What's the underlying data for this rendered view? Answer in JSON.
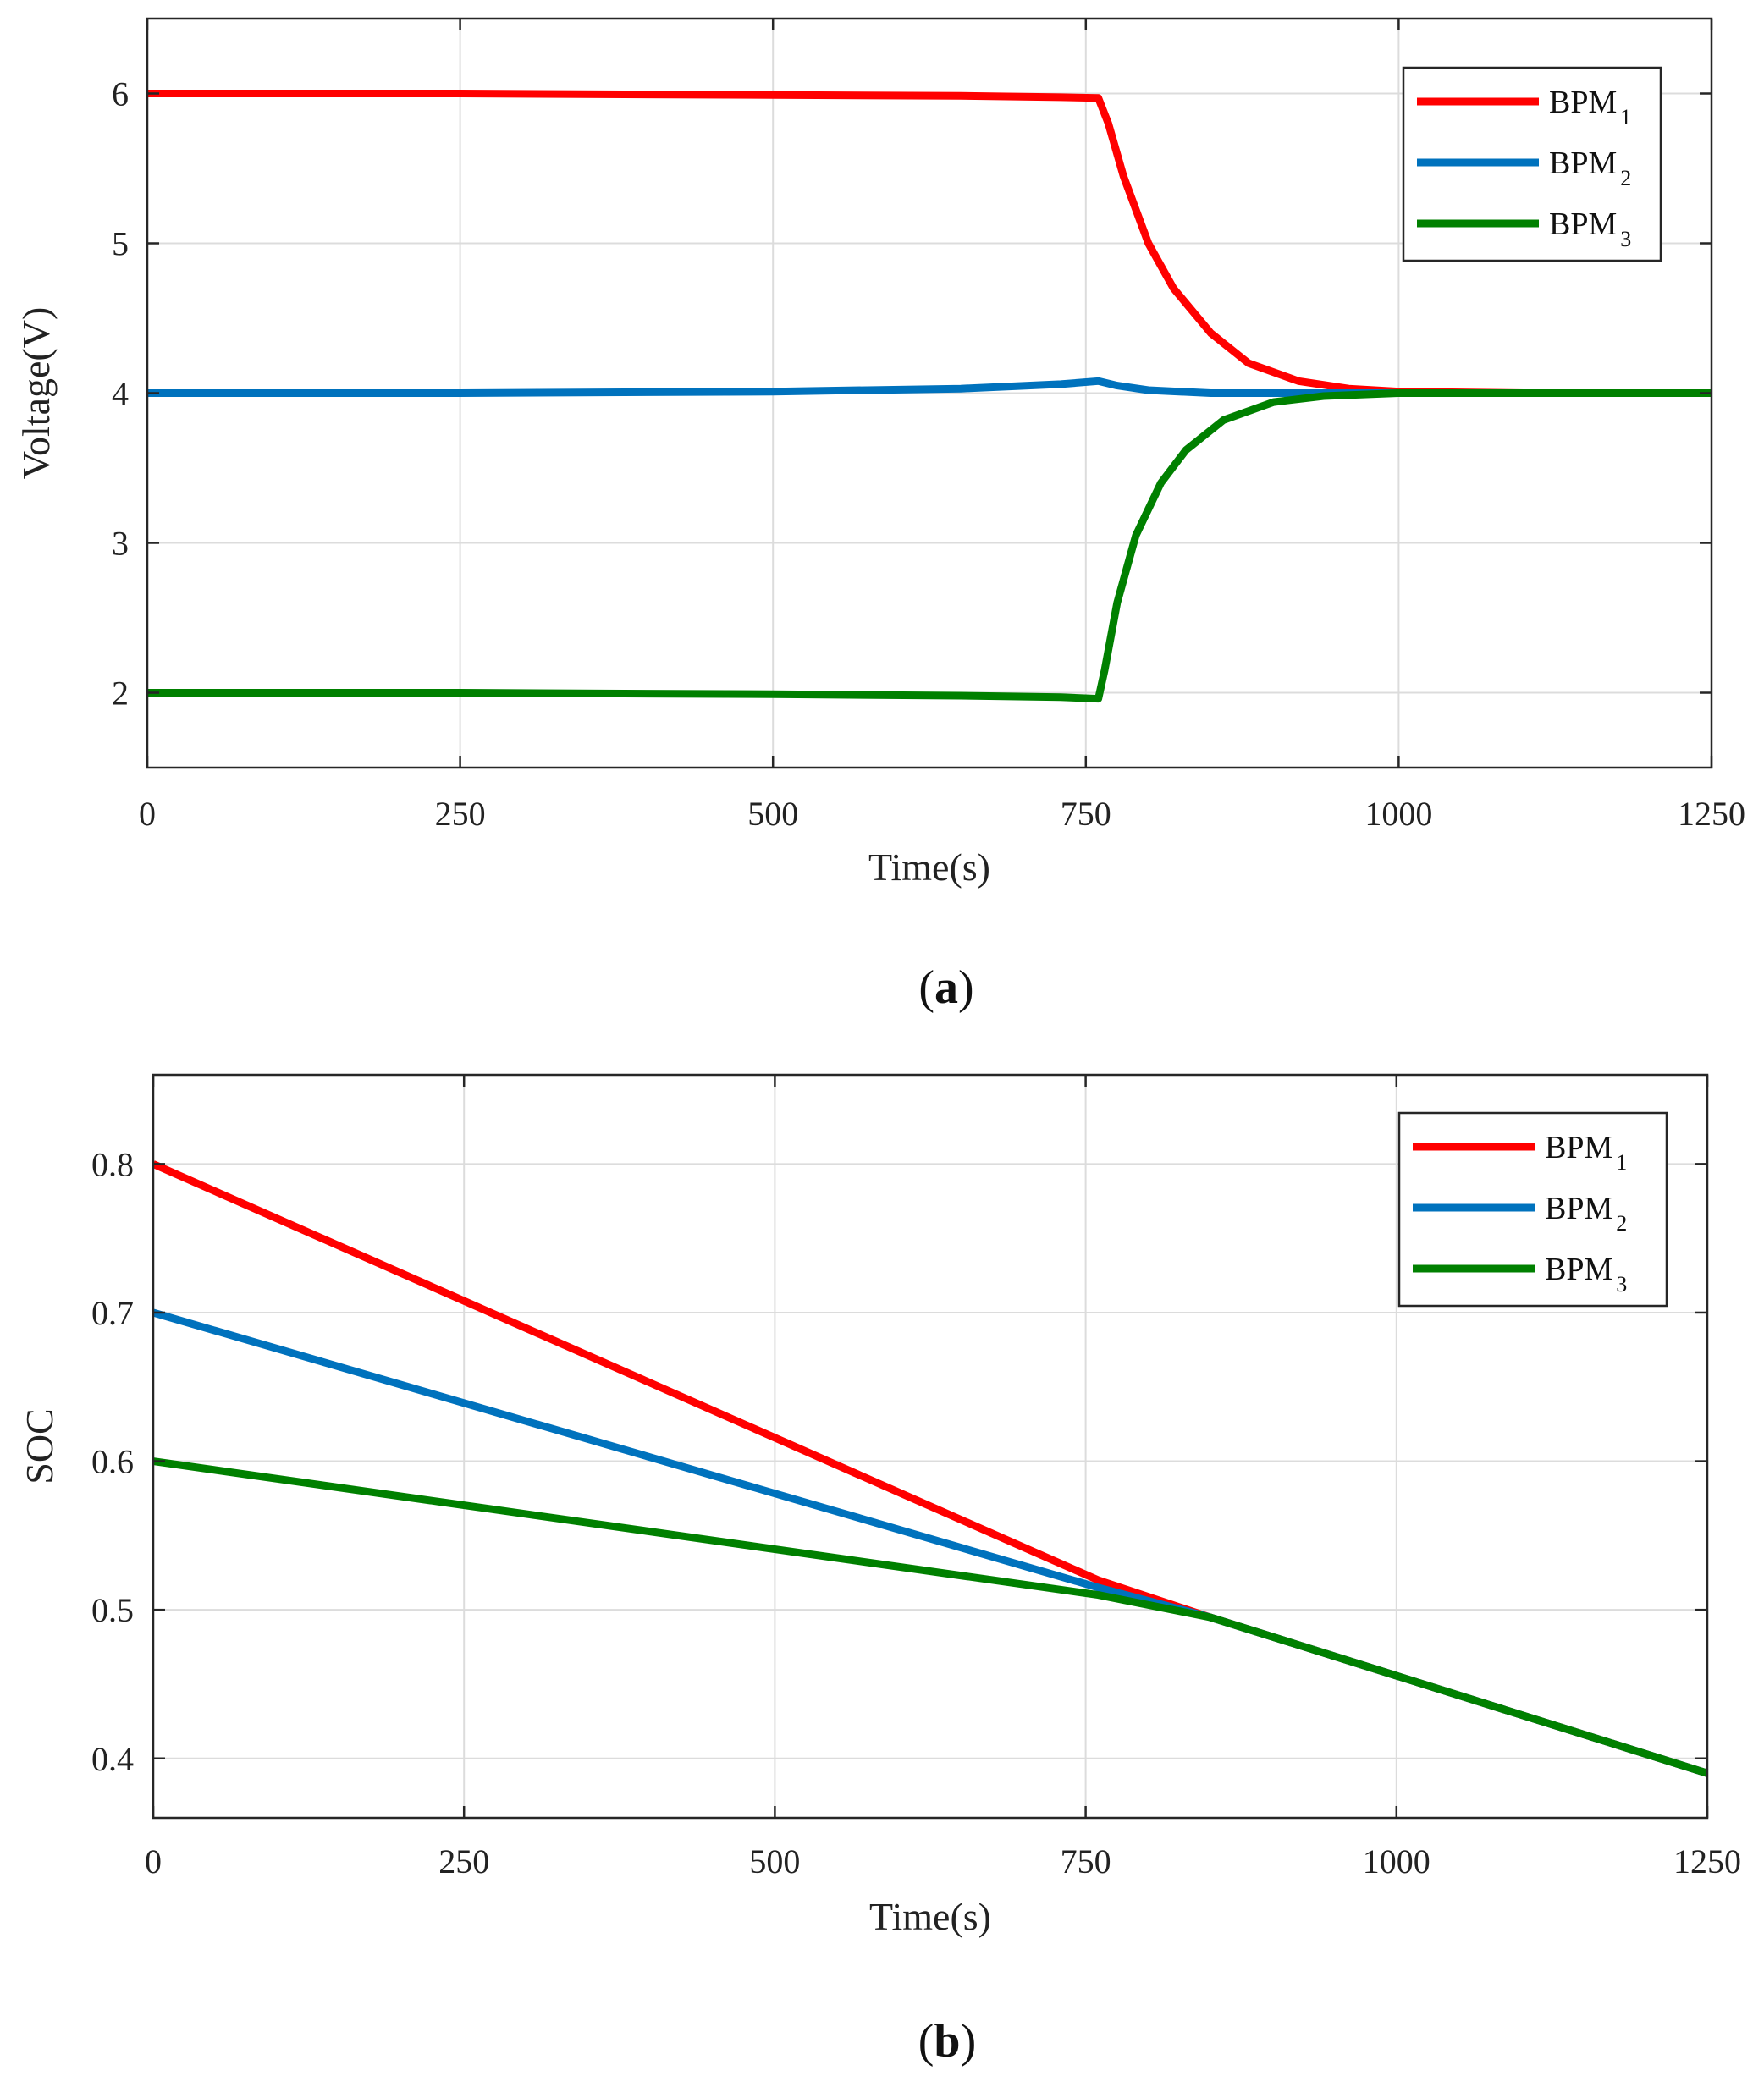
{
  "chart_data": [
    {
      "type": "line",
      "panel_label": "a",
      "xlabel": "Time(s)",
      "ylabel": "Voltage(V)",
      "xlim": [
        0,
        1250
      ],
      "ylim": [
        1.5,
        6.5
      ],
      "xticks": [
        "0",
        "250",
        "500",
        "750",
        "1000",
        "1250"
      ],
      "yticks": [
        "2",
        "3",
        "4",
        "5",
        "6"
      ],
      "grid": true,
      "legend_position": "top-right",
      "series": [
        {
          "name": "BPM",
          "subscript": "1",
          "color": "#ff0000",
          "x": [
            0,
            250,
            500,
            650,
            730,
            760,
            768,
            780,
            800,
            820,
            850,
            880,
            920,
            960,
            1000,
            1100,
            1250
          ],
          "y": [
            6.0,
            6.0,
            5.99,
            5.985,
            5.975,
            5.97,
            5.8,
            5.45,
            5.0,
            4.7,
            4.4,
            4.2,
            4.08,
            4.03,
            4.01,
            4.0,
            4.0
          ]
        },
        {
          "name": "BPM",
          "subscript": "2",
          "color": "#0072bd",
          "x": [
            0,
            250,
            500,
            650,
            730,
            760,
            775,
            800,
            850,
            900,
            1000,
            1250
          ],
          "y": [
            4.0,
            4.0,
            4.01,
            4.03,
            4.06,
            4.08,
            4.05,
            4.02,
            4.0,
            4.0,
            4.0,
            4.0
          ],
          "width_factor": 1
        },
        {
          "name": "BPM",
          "subscript": "3",
          "color": "#008000",
          "x": [
            0,
            250,
            500,
            650,
            730,
            760,
            765,
            775,
            790,
            810,
            830,
            860,
            900,
            940,
            1000,
            1100,
            1250
          ],
          "y": [
            2.0,
            2.0,
            1.99,
            1.98,
            1.97,
            1.96,
            2.15,
            2.6,
            3.05,
            3.4,
            3.62,
            3.82,
            3.94,
            3.98,
            4.0,
            4.0,
            4.0
          ]
        }
      ]
    },
    {
      "type": "line",
      "panel_label": "b",
      "xlabel": "Time(s)",
      "ylabel": "SOC",
      "xlim": [
        0,
        1250
      ],
      "ylim": [
        0.36,
        0.86
      ],
      "xticks": [
        "0",
        "250",
        "500",
        "750",
        "1000",
        "1250"
      ],
      "yticks": [
        "0.4",
        "0.5",
        "0.6",
        "0.7",
        "0.8"
      ],
      "grid": true,
      "legend_position": "top-right",
      "series": [
        {
          "name": "BPM",
          "subscript": "1",
          "color": "#ff0000",
          "x": [
            0,
            760,
            850,
            1250
          ],
          "y": [
            0.8,
            0.52,
            0.495,
            0.39
          ]
        },
        {
          "name": "BPM",
          "subscript": "2",
          "color": "#0072bd",
          "x": [
            0,
            760,
            850,
            1250
          ],
          "y": [
            0.7,
            0.515,
            0.495,
            0.39
          ]
        },
        {
          "name": "BPM",
          "subscript": "3",
          "color": "#008000",
          "x": [
            0,
            760,
            850,
            1250
          ],
          "y": [
            0.6,
            0.51,
            0.495,
            0.39
          ]
        }
      ]
    }
  ]
}
